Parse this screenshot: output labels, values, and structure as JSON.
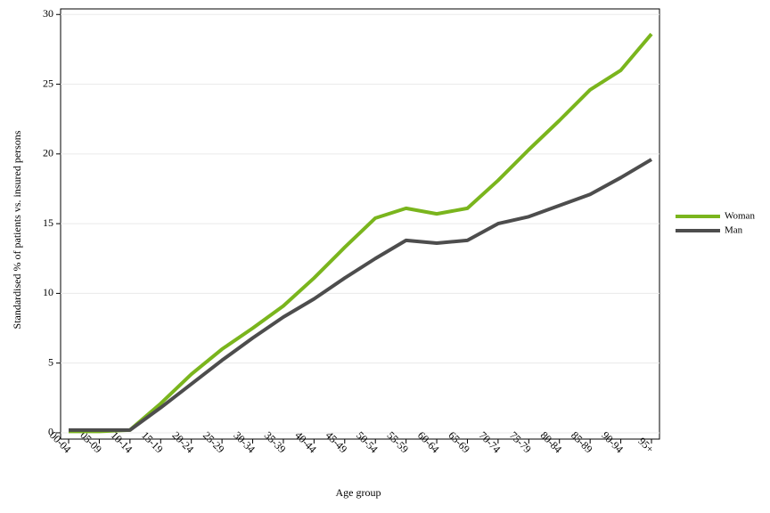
{
  "chart_data": {
    "type": "line",
    "categories": [
      "00-04",
      "05-09",
      "10-14",
      "15-19",
      "20-24",
      "25-29",
      "30-34",
      "35-39",
      "40-44",
      "45-49",
      "50-54",
      "55-59",
      "60-64",
      "65-69",
      "70-74",
      "75-79",
      "80-84",
      "85-89",
      "90-94",
      "95+"
    ],
    "series": [
      {
        "name": "Woman",
        "color": "#7ab51d",
        "values": [
          0.1,
          0.1,
          0.2,
          2.1,
          4.2,
          6.0,
          7.5,
          9.1,
          11.1,
          13.3,
          15.4,
          16.1,
          15.7,
          16.1,
          18.1,
          20.3,
          22.4,
          24.6,
          26.0,
          28.6
        ]
      },
      {
        "name": "Man",
        "color": "#4d4d4d",
        "values": [
          0.2,
          0.2,
          0.2,
          1.8,
          3.5,
          5.2,
          6.8,
          8.3,
          9.6,
          11.1,
          12.5,
          13.8,
          13.6,
          13.8,
          15.0,
          15.5,
          16.3,
          17.1,
          18.3,
          19.6
        ]
      }
    ],
    "x_label": "Age group",
    "y_label": "Standardised % of patients vs. insured persons",
    "ylim": [
      -0.45,
      30.4
    ],
    "yticks": [
      0,
      5,
      10,
      15,
      20,
      25,
      30
    ],
    "grid": true,
    "legend": "right"
  }
}
